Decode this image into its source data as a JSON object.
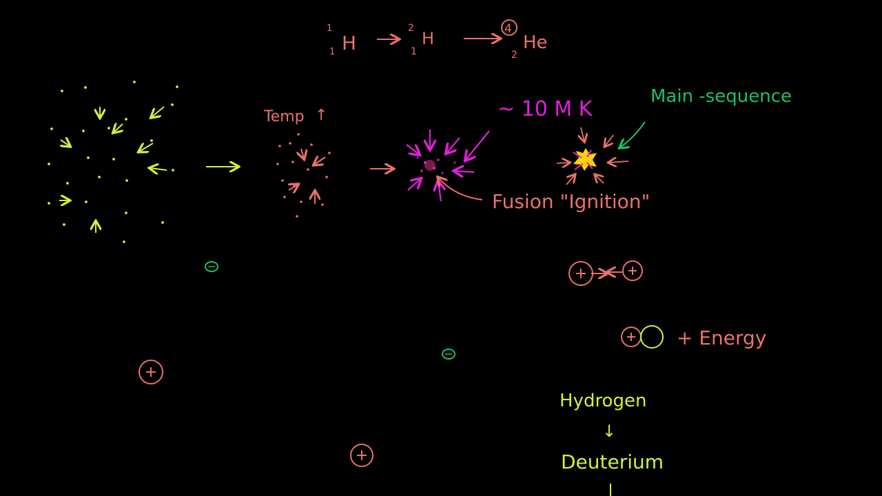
{
  "colors": {
    "background": "#000000",
    "salmon": "#e8736b",
    "yellow": "#d7ee3a",
    "magenta": "#e020d6",
    "green": "#19c06a",
    "star_core": "#ffd400"
  },
  "equation": {
    "h1_mass": "1",
    "h1_atomic": "1",
    "h1_symbol": "H",
    "h2_mass": "2",
    "h2_atomic": "1",
    "h2_symbol": "H",
    "he_mass": "4",
    "he_atomic": "2",
    "he_symbol": "He"
  },
  "labels": {
    "temp": "Temp",
    "temp_arrow": "↑",
    "ten_mk": "~ 10 M K",
    "main_sequence": "Main -sequence",
    "fusion_ignition": "Fusion \"Ignition\"",
    "plus_sign": "+",
    "energy": "+ Energy",
    "hydrogen": "Hydrogen",
    "down_arrow": "↓",
    "deuterium": "Deuterium"
  }
}
